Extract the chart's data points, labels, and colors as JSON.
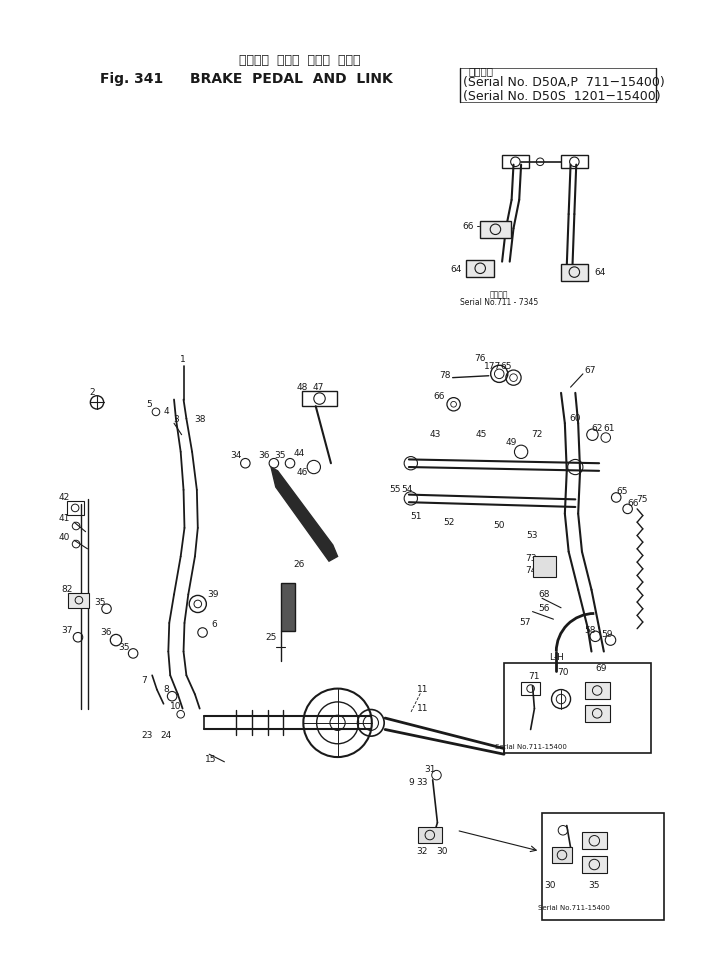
{
  "bg_color": "#ffffff",
  "line_color": "#1a1a1a",
  "title_jp": "ブレーキ  ペダル  および  リンク",
  "title_en_prefix": "Fig. 341",
  "title_en_main": "BRAKE  PEDAL  AND  LINK",
  "serial_apt": "適用号機",
  "serial1": "Serial No. D50A,P  711-15400",
  "serial2": "(Serial No. D50S  1201-15400)",
  "serial_small1": "適用号機",
  "serial_note1": "Serial No.711 - 7345",
  "serial_note2": "Serial No.711-15400",
  "lh_label": "L-H"
}
